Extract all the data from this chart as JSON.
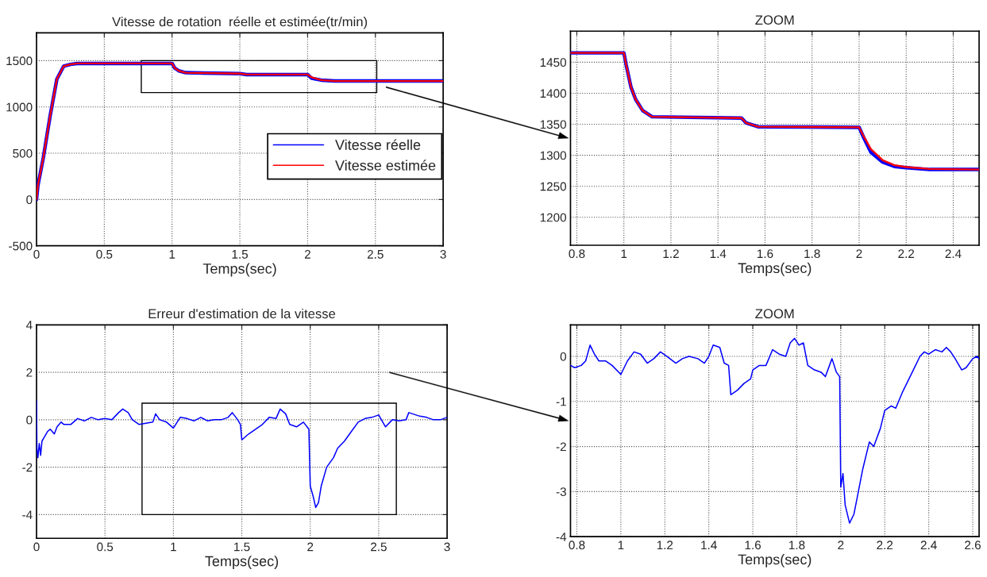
{
  "chart_data": [
    {
      "type": "line",
      "title": "Vitesse de rotation  réelle et estimée(tr/min)",
      "xlabel": "Temps(sec)",
      "xlim": [
        0,
        3
      ],
      "xticks": [
        0,
        0.5,
        1,
        1.5,
        2,
        2.5,
        3
      ],
      "ylim": [
        -500,
        1800
      ],
      "yticks": [
        -500,
        0,
        500,
        1000,
        1500
      ],
      "grid": true,
      "legend": "right",
      "series": [
        {
          "name": "Vitesse réelle",
          "color": "#0000ff",
          "x": [
            0,
            0.01,
            0.05,
            0.1,
            0.15,
            0.2,
            0.25,
            0.3,
            1.0,
            1.02,
            1.05,
            1.1,
            1.5,
            1.55,
            2.0,
            2.03,
            2.1,
            2.2,
            2.3,
            3
          ],
          "values": [
            0,
            150,
            450,
            900,
            1300,
            1440,
            1460,
            1470,
            1470,
            1420,
            1390,
            1370,
            1360,
            1350,
            1350,
            1310,
            1290,
            1280,
            1280,
            1280
          ]
        },
        {
          "name": "Vitesse estimée",
          "color": "#ff0000",
          "x": [
            0,
            0.01,
            0.05,
            0.1,
            0.15,
            0.2,
            0.25,
            0.3,
            1.0,
            1.02,
            1.05,
            1.1,
            1.5,
            1.55,
            2.0,
            2.03,
            2.1,
            2.2,
            2.3,
            3
          ],
          "values": [
            0,
            150,
            450,
            900,
            1300,
            1440,
            1460,
            1470,
            1470,
            1420,
            1390,
            1370,
            1360,
            1350,
            1350,
            1320,
            1290,
            1280,
            1280,
            1280
          ]
        }
      ]
    },
    {
      "type": "line",
      "title": "ZOOM",
      "xlabel": "Temps(sec)",
      "xlim": [
        0.773,
        2.51
      ],
      "xticks": [
        0.8,
        1,
        1.2,
        1.4,
        1.6,
        1.8,
        2,
        2.2,
        2.4
      ],
      "ylim": [
        1155,
        1500
      ],
      "yticks": [
        1200,
        1250,
        1300,
        1350,
        1400,
        1450
      ],
      "grid": true,
      "series": [
        {
          "color": "#0000ff",
          "x": [
            0.773,
            1.0,
            1.01,
            1.03,
            1.05,
            1.08,
            1.12,
            1.5,
            1.52,
            1.57,
            2.0,
            2.02,
            2.05,
            2.1,
            2.15,
            2.2,
            2.3,
            2.51
          ],
          "values": [
            1465,
            1465,
            1445,
            1410,
            1390,
            1372,
            1362,
            1360,
            1352,
            1346,
            1345,
            1328,
            1305,
            1289,
            1282,
            1280,
            1277,
            1277
          ]
        },
        {
          "color": "#ff0000",
          "x": [
            0.773,
            1.0,
            1.01,
            1.03,
            1.05,
            1.08,
            1.12,
            1.5,
            1.52,
            1.57,
            2.0,
            2.02,
            2.05,
            2.1,
            2.15,
            2.2,
            2.3,
            2.51
          ],
          "values": [
            1465,
            1465,
            1445,
            1410,
            1390,
            1372,
            1362,
            1360,
            1352,
            1346,
            1345,
            1330,
            1310,
            1292,
            1284,
            1281,
            1278,
            1277
          ]
        }
      ]
    },
    {
      "type": "line",
      "title": "Erreur d'estimation de la vitesse",
      "xlabel": "Temps(sec)",
      "xlim": [
        0,
        3
      ],
      "xticks": [
        0,
        0.5,
        1,
        1.5,
        2,
        2.5,
        3
      ],
      "ylim": [
        -5,
        4
      ],
      "yticks": [
        -4,
        -2,
        0,
        2,
        4
      ],
      "grid": true,
      "series": [
        {
          "color": "#0000ff",
          "x": [
            0,
            0.003,
            0.01,
            0.02,
            0.03,
            0.04,
            0.06,
            0.08,
            0.1,
            0.13,
            0.15,
            0.18,
            0.2,
            0.25,
            0.3,
            0.35,
            0.4,
            0.45,
            0.5,
            0.55,
            0.6,
            0.63,
            0.67,
            0.7,
            0.75,
            0.8,
            0.85,
            0.87,
            0.9,
            0.95,
            1.0,
            1.05,
            1.1,
            1.15,
            1.2,
            1.25,
            1.3,
            1.35,
            1.4,
            1.43,
            1.47,
            1.49,
            1.5,
            1.55,
            1.6,
            1.65,
            1.7,
            1.75,
            1.78,
            1.82,
            1.85,
            1.9,
            1.95,
            1.99,
            2.0,
            2.02,
            2.04,
            2.06,
            2.08,
            2.12,
            2.17,
            2.2,
            2.25,
            2.3,
            2.35,
            2.4,
            2.45,
            2.5,
            2.55,
            2.6,
            2.65,
            2.7,
            2.72,
            2.8,
            2.85,
            2.9,
            2.95,
            3.0
          ],
          "values": [
            0.8,
            -1.2,
            -1.6,
            -1.0,
            -1.5,
            -0.9,
            -0.7,
            -0.5,
            -0.4,
            -0.6,
            -0.3,
            -0.1,
            -0.2,
            -0.2,
            0.05,
            -0.05,
            0.1,
            0.0,
            0.05,
            0.0,
            0.3,
            0.45,
            0.3,
            0.0,
            -0.2,
            -0.15,
            -0.1,
            0.25,
            0.0,
            -0.1,
            -0.35,
            0.1,
            0.05,
            -0.05,
            0.1,
            -0.05,
            0.0,
            0.0,
            0.1,
            0.3,
            0.0,
            -0.2,
            -0.85,
            -0.6,
            -0.4,
            -0.2,
            0.1,
            0.05,
            0.45,
            0.25,
            -0.2,
            -0.3,
            -0.1,
            -0.4,
            -2.8,
            -3.2,
            -3.7,
            -3.5,
            -2.8,
            -2.0,
            -1.6,
            -1.2,
            -0.9,
            -0.5,
            -0.1,
            0.05,
            0.1,
            0.2,
            -0.3,
            0.0,
            -0.05,
            0.0,
            0.3,
            0.15,
            0.1,
            0.0,
            0.0,
            0.1
          ]
        }
      ]
    },
    {
      "type": "line",
      "title": "ZOOM",
      "xlabel": "Temps(sec)",
      "xlim": [
        0.771,
        2.629
      ],
      "xticks": [
        0.8,
        1,
        1.2,
        1.4,
        1.6,
        1.8,
        2,
        2.2,
        2.4,
        2.6
      ],
      "ylim": [
        -4,
        0.7
      ],
      "yticks": [
        -4,
        -3,
        -2,
        -1,
        0
      ],
      "grid": true,
      "series": [
        {
          "color": "#0000ff",
          "x": [
            0.771,
            0.79,
            0.82,
            0.84,
            0.86,
            0.88,
            0.9,
            0.93,
            0.96,
            1.0,
            1.03,
            1.06,
            1.09,
            1.12,
            1.15,
            1.18,
            1.21,
            1.25,
            1.28,
            1.31,
            1.35,
            1.38,
            1.4,
            1.42,
            1.45,
            1.47,
            1.49,
            1.5,
            1.53,
            1.56,
            1.59,
            1.6,
            1.63,
            1.66,
            1.69,
            1.72,
            1.75,
            1.77,
            1.79,
            1.81,
            1.83,
            1.85,
            1.88,
            1.91,
            1.93,
            1.96,
            1.98,
            1.995,
            2.0,
            2.01,
            2.02,
            2.04,
            2.06,
            2.08,
            2.1,
            2.13,
            2.15,
            2.18,
            2.2,
            2.23,
            2.25,
            2.28,
            2.3,
            2.33,
            2.36,
            2.38,
            2.4,
            2.43,
            2.46,
            2.48,
            2.5,
            2.52,
            2.55,
            2.57,
            2.6,
            2.62,
            2.629
          ],
          "values": [
            -0.2,
            -0.25,
            -0.2,
            -0.1,
            0.25,
            0.05,
            -0.1,
            -0.1,
            -0.2,
            -0.4,
            -0.1,
            0.1,
            0.05,
            -0.15,
            -0.05,
            0.1,
            0.0,
            -0.15,
            -0.05,
            0.0,
            -0.05,
            -0.15,
            0.0,
            0.25,
            0.2,
            -0.15,
            -0.2,
            -0.85,
            -0.75,
            -0.6,
            -0.5,
            -0.3,
            -0.2,
            -0.2,
            0.15,
            0.05,
            0.0,
            0.3,
            0.4,
            0.25,
            0.3,
            -0.2,
            -0.3,
            -0.35,
            -0.45,
            -0.05,
            -0.35,
            -0.45,
            -2.9,
            -2.6,
            -3.3,
            -3.7,
            -3.5,
            -3.0,
            -2.5,
            -1.9,
            -2.0,
            -1.6,
            -1.2,
            -1.1,
            -1.15,
            -0.8,
            -0.6,
            -0.3,
            0.0,
            0.1,
            0.05,
            0.15,
            0.1,
            0.2,
            0.1,
            -0.05,
            -0.3,
            -0.25,
            -0.05,
            0.0,
            -0.05
          ]
        }
      ]
    }
  ]
}
